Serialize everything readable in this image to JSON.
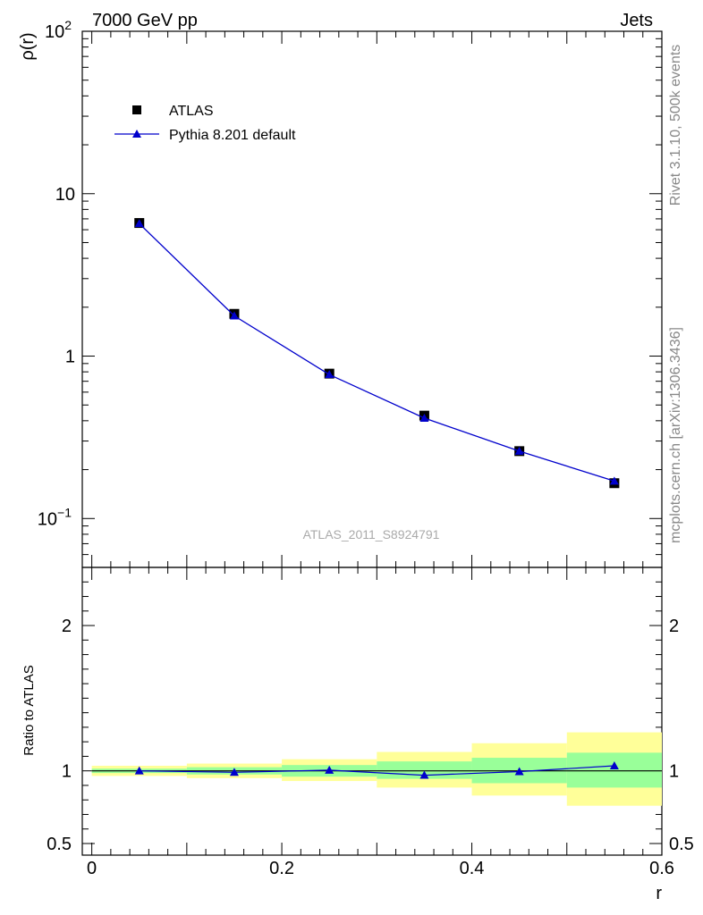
{
  "header": {
    "left": "7000 GeV pp",
    "right": "Jets"
  },
  "side_labels": {
    "rivet": "Rivet 3.1.10,  500k events",
    "source": "mcplots.cern.ch [arXiv:1306.3436]"
  },
  "watermark": "ATLAS_2011_S8924791",
  "colors": {
    "mc": "#0000cc",
    "band_inner": "#99ff99",
    "band_outer": "#ffff99",
    "data": "#000000"
  },
  "chart_data": [
    {
      "type": "scatter",
      "name": "main",
      "ylabel": "ρ(r)",
      "yscale": "log",
      "ylim": [
        0.05,
        100
      ],
      "xlim": [
        -0.01,
        0.6
      ],
      "yticks": [
        {
          "value": 0.1,
          "base": "10",
          "exp": "−1"
        },
        {
          "value": 1,
          "base": "1",
          "exp": ""
        },
        {
          "value": 10,
          "base": "10",
          "exp": ""
        },
        {
          "value": 100,
          "base": "10",
          "exp": "2"
        }
      ],
      "legend": {
        "placement": "top-left",
        "entries": [
          {
            "label": "ATLAS",
            "marker": "square"
          },
          {
            "label": "Pythia 8.201 default",
            "marker": "triangle-line"
          }
        ]
      },
      "x": [
        0.05,
        0.15,
        0.25,
        0.35,
        0.45,
        0.55
      ],
      "series": [
        {
          "name": "ATLAS",
          "values": [
            6.6,
            1.82,
            0.78,
            0.43,
            0.26,
            0.165
          ]
        },
        {
          "name": "Pythia 8.201 default",
          "values": [
            6.55,
            1.77,
            0.77,
            0.415,
            0.26,
            0.17
          ]
        }
      ]
    },
    {
      "type": "line",
      "name": "ratio",
      "ylabel": "Ratio to ATLAS",
      "xlabel": "r",
      "ylim": [
        0.42,
        2.4
      ],
      "xlim": [
        -0.01,
        0.6
      ],
      "yticks": [
        0.5,
        1,
        2
      ],
      "xticks": [
        0,
        0.2,
        0.4,
        0.6
      ],
      "xticklabels": [
        "0",
        "0.2",
        "0.4",
        "0.6"
      ],
      "bins": [
        {
          "x0": 0.0,
          "x1": 0.1,
          "inner": [
            0.985,
            1.015
          ],
          "outer": [
            0.965,
            1.035
          ]
        },
        {
          "x0": 0.1,
          "x1": 0.2,
          "inner": [
            0.975,
            1.025
          ],
          "outer": [
            0.95,
            1.05
          ]
        },
        {
          "x0": 0.2,
          "x1": 0.3,
          "inner": [
            0.96,
            1.04
          ],
          "outer": [
            0.93,
            1.08
          ]
        },
        {
          "x0": 0.3,
          "x1": 0.4,
          "inner": [
            0.945,
            1.065
          ],
          "outer": [
            0.885,
            1.13
          ]
        },
        {
          "x0": 0.4,
          "x1": 0.5,
          "inner": [
            0.915,
            1.09
          ],
          "outer": [
            0.83,
            1.19
          ]
        },
        {
          "x0": 0.5,
          "x1": 0.6,
          "inner": [
            0.885,
            1.125
          ],
          "outer": [
            0.76,
            1.265
          ]
        }
      ],
      "x": [
        0.05,
        0.15,
        0.25,
        0.35,
        0.45,
        0.55
      ],
      "series": [
        {
          "name": "Pythia 8.201 default",
          "values": [
            1.0,
            0.99,
            1.005,
            0.97,
            0.995,
            1.035
          ]
        }
      ]
    }
  ]
}
